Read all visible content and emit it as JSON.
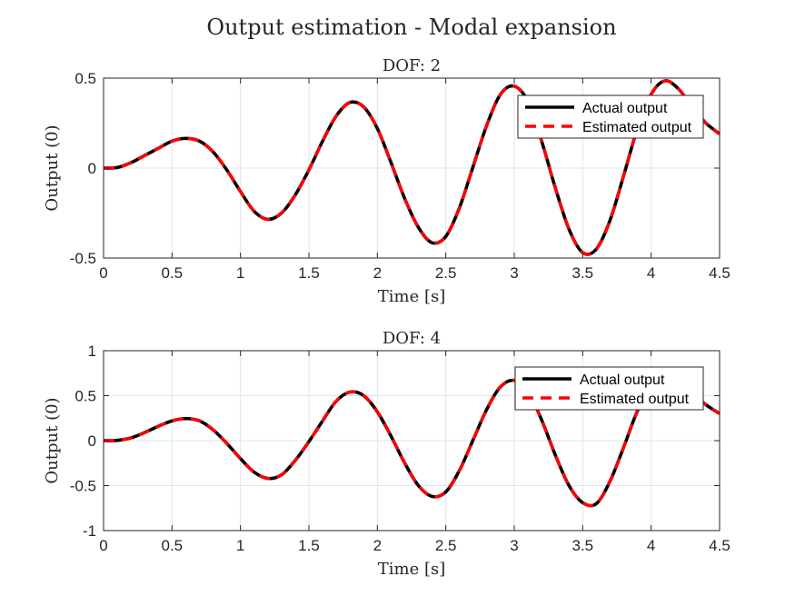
{
  "figure": {
    "title": "Output estimation - Modal expansion",
    "colors": {
      "actual": "#000000",
      "estimated": "#ff0000",
      "grid": "#e3e3e3",
      "axis": "#262626"
    }
  },
  "chart_data": [
    {
      "type": "line",
      "title": "DOF: 2",
      "xlabel": "Time [s]",
      "ylabel": "Output (0)",
      "xlim": [
        0,
        4.5
      ],
      "ylim": [
        -0.5,
        0.5
      ],
      "xticks": [
        0,
        0.5,
        1,
        1.5,
        2,
        2.5,
        3,
        3.5,
        4,
        4.5
      ],
      "xtick_labels": [
        "0",
        "0.5",
        "1",
        "1.5",
        "2",
        "2.5",
        "3",
        "3.5",
        "4",
        "4.5"
      ],
      "yticks": [
        -0.5,
        0,
        0.5
      ],
      "ytick_labels": [
        "-0.5",
        "0",
        "0.5"
      ],
      "grid": true,
      "legend_position": "top-right",
      "series": [
        {
          "name": "Actual output",
          "style": "solid",
          "x": [
            0,
            0.1,
            0.2,
            0.3,
            0.4,
            0.5,
            0.6,
            0.7,
            0.8,
            0.9,
            1.0,
            1.1,
            1.2,
            1.3,
            1.4,
            1.5,
            1.6,
            1.7,
            1.8,
            1.9,
            2.0,
            2.1,
            2.2,
            2.3,
            2.4,
            2.5,
            2.6,
            2.7,
            2.8,
            2.9,
            3.0,
            3.1,
            3.2,
            3.3,
            3.4,
            3.5,
            3.6,
            3.7,
            3.8,
            3.9,
            4.0,
            4.1,
            4.2,
            4.3,
            4.4,
            4.5
          ],
          "y": [
            0,
            0.003,
            0.03,
            0.07,
            0.11,
            0.15,
            0.165,
            0.15,
            0.09,
            -0.01,
            -0.13,
            -0.24,
            -0.285,
            -0.25,
            -0.15,
            -0.01,
            0.15,
            0.29,
            0.365,
            0.34,
            0.22,
            0.03,
            -0.17,
            -0.33,
            -0.415,
            -0.38,
            -0.22,
            0.01,
            0.24,
            0.41,
            0.455,
            0.37,
            0.15,
            -0.11,
            -0.34,
            -0.47,
            -0.45,
            -0.29,
            -0.04,
            0.22,
            0.41,
            0.485,
            0.44,
            0.34,
            0.25,
            0.19
          ]
        },
        {
          "name": "Estimated output",
          "style": "dashed",
          "x": [
            0,
            0.1,
            0.2,
            0.3,
            0.4,
            0.5,
            0.6,
            0.7,
            0.8,
            0.9,
            1.0,
            1.1,
            1.2,
            1.3,
            1.4,
            1.5,
            1.6,
            1.7,
            1.8,
            1.9,
            2.0,
            2.1,
            2.2,
            2.3,
            2.4,
            2.5,
            2.6,
            2.7,
            2.8,
            2.9,
            3.0,
            3.1,
            3.2,
            3.3,
            3.4,
            3.5,
            3.6,
            3.7,
            3.8,
            3.9,
            4.0,
            4.1,
            4.2,
            4.3,
            4.4,
            4.5
          ],
          "y": [
            0,
            0.003,
            0.03,
            0.07,
            0.11,
            0.15,
            0.165,
            0.15,
            0.09,
            -0.01,
            -0.13,
            -0.24,
            -0.285,
            -0.25,
            -0.15,
            -0.01,
            0.15,
            0.29,
            0.365,
            0.34,
            0.22,
            0.03,
            -0.17,
            -0.33,
            -0.415,
            -0.38,
            -0.22,
            0.01,
            0.24,
            0.41,
            0.455,
            0.37,
            0.15,
            -0.11,
            -0.34,
            -0.47,
            -0.45,
            -0.29,
            -0.04,
            0.22,
            0.41,
            0.485,
            0.44,
            0.34,
            0.25,
            0.19
          ]
        }
      ]
    },
    {
      "type": "line",
      "title": "DOF: 4",
      "xlabel": "Time [s]",
      "ylabel": "Output (0)",
      "xlim": [
        0,
        4.5
      ],
      "ylim": [
        -1,
        1
      ],
      "xticks": [
        0,
        0.5,
        1,
        1.5,
        2,
        2.5,
        3,
        3.5,
        4,
        4.5
      ],
      "xtick_labels": [
        "0",
        "0.5",
        "1",
        "1.5",
        "2",
        "2.5",
        "3",
        "3.5",
        "4",
        "4.5"
      ],
      "yticks": [
        -1,
        -0.5,
        0,
        0.5,
        1
      ],
      "ytick_labels": [
        "-1",
        "-0.5",
        "0",
        "0.5",
        "1"
      ],
      "grid": true,
      "legend_position": "top-right",
      "series": [
        {
          "name": "Actual output",
          "style": "solid",
          "x": [
            0,
            0.1,
            0.2,
            0.3,
            0.4,
            0.5,
            0.6,
            0.7,
            0.8,
            0.9,
            1.0,
            1.1,
            1.2,
            1.3,
            1.4,
            1.5,
            1.6,
            1.7,
            1.8,
            1.9,
            2.0,
            2.1,
            2.2,
            2.3,
            2.4,
            2.5,
            2.6,
            2.7,
            2.8,
            2.9,
            3.0,
            3.1,
            3.2,
            3.3,
            3.4,
            3.5,
            3.6,
            3.7,
            3.8,
            3.9,
            4.0,
            4.1,
            4.2,
            4.3,
            4.4,
            4.5
          ],
          "y": [
            0,
            0.003,
            0.03,
            0.09,
            0.16,
            0.22,
            0.245,
            0.22,
            0.12,
            -0.03,
            -0.2,
            -0.35,
            -0.42,
            -0.38,
            -0.22,
            -0.01,
            0.22,
            0.44,
            0.54,
            0.5,
            0.32,
            0.05,
            -0.25,
            -0.5,
            -0.62,
            -0.57,
            -0.33,
            0.01,
            0.35,
            0.6,
            0.67,
            0.55,
            0.23,
            -0.16,
            -0.5,
            -0.69,
            -0.7,
            -0.45,
            -0.07,
            0.33,
            0.6,
            0.69,
            0.65,
            0.53,
            0.4,
            0.3
          ]
        },
        {
          "name": "Estimated output",
          "style": "dashed",
          "x": [
            0,
            0.1,
            0.2,
            0.3,
            0.4,
            0.5,
            0.6,
            0.7,
            0.8,
            0.9,
            1.0,
            1.1,
            1.2,
            1.3,
            1.4,
            1.5,
            1.6,
            1.7,
            1.8,
            1.9,
            2.0,
            2.1,
            2.2,
            2.3,
            2.4,
            2.5,
            2.6,
            2.7,
            2.8,
            2.9,
            3.0,
            3.1,
            3.2,
            3.3,
            3.4,
            3.5,
            3.6,
            3.7,
            3.8,
            3.9,
            4.0,
            4.1,
            4.2,
            4.3,
            4.4,
            4.5
          ],
          "y": [
            0,
            0.003,
            0.03,
            0.09,
            0.16,
            0.22,
            0.245,
            0.22,
            0.12,
            -0.03,
            -0.2,
            -0.35,
            -0.42,
            -0.38,
            -0.22,
            -0.01,
            0.22,
            0.44,
            0.54,
            0.5,
            0.32,
            0.05,
            -0.25,
            -0.5,
            -0.62,
            -0.57,
            -0.33,
            0.01,
            0.35,
            0.6,
            0.67,
            0.55,
            0.23,
            -0.16,
            -0.5,
            -0.69,
            -0.7,
            -0.45,
            -0.07,
            0.33,
            0.6,
            0.69,
            0.65,
            0.53,
            0.4,
            0.3
          ]
        }
      ]
    }
  ]
}
